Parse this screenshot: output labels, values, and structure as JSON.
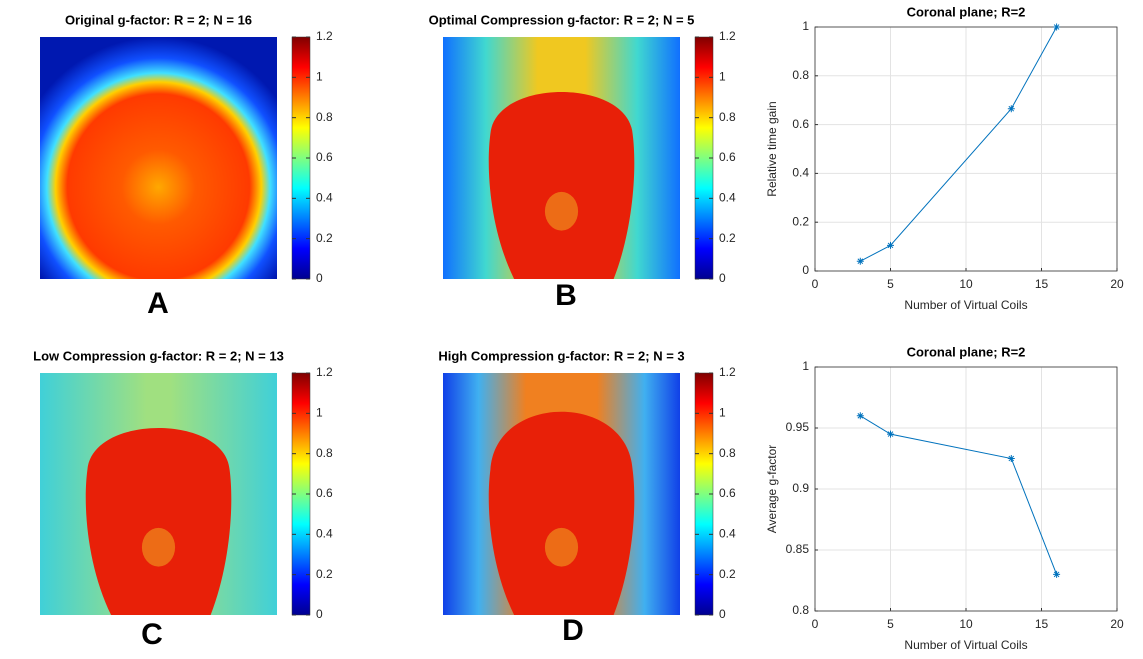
{
  "chart_data": [
    {
      "type": "image",
      "title": "Original g-factor: R = 2; N = 16",
      "label": "A",
      "colormap": "jet",
      "clim": [
        0,
        1.2
      ],
      "cticks": [
        0,
        0.2,
        0.4,
        0.6,
        0.8,
        1,
        1.2
      ]
    },
    {
      "type": "image",
      "title": "Optimal Compression g-factor: R = 2; N = 5",
      "label": "B",
      "colormap": "jet",
      "clim": [
        0,
        1.2
      ],
      "cticks": [
        0,
        0.2,
        0.4,
        0.6,
        0.8,
        1,
        1.2
      ]
    },
    {
      "type": "line",
      "title": "Coronal plane; R=2",
      "x_label": "Number of Virtual Coils",
      "y_label": "Relative time gain",
      "x": [
        3,
        5,
        13,
        16
      ],
      "values": [
        0.04,
        0.105,
        0.665,
        1.0
      ],
      "color": "#0072bd",
      "marker": "*",
      "xlim": [
        0,
        20
      ],
      "xticks": [
        0,
        5,
        10,
        15,
        20
      ],
      "ylim": [
        0,
        1
      ],
      "yticks": [
        0,
        0.2,
        0.4,
        0.6,
        0.8,
        1
      ],
      "grid": true
    },
    {
      "type": "image",
      "title": "Low Compression g-factor: R = 2; N = 13",
      "label": "C",
      "colormap": "jet",
      "clim": [
        0,
        1.2
      ],
      "cticks": [
        0,
        0.2,
        0.4,
        0.6,
        0.8,
        1,
        1.2
      ]
    },
    {
      "type": "image",
      "title": "High Compression g-factor: R = 2; N = 3",
      "label": "D",
      "colormap": "jet",
      "clim": [
        0,
        1.2
      ],
      "cticks": [
        0,
        0.2,
        0.4,
        0.6,
        0.8,
        1,
        1.2
      ]
    },
    {
      "type": "line",
      "title": "Coronal plane; R=2",
      "x_label": "Number of Virtual Coils",
      "y_label": "Average g-factor",
      "x": [
        3,
        5,
        13,
        16
      ],
      "values": [
        0.96,
        0.945,
        0.925,
        0.83
      ],
      "color": "#0072bd",
      "marker": "*",
      "xlim": [
        0,
        20
      ],
      "xticks": [
        0,
        5,
        10,
        15,
        20
      ],
      "ylim": [
        0.8,
        1
      ],
      "yticks": [
        0.8,
        0.85,
        0.9,
        0.95,
        1
      ],
      "grid": true
    }
  ]
}
